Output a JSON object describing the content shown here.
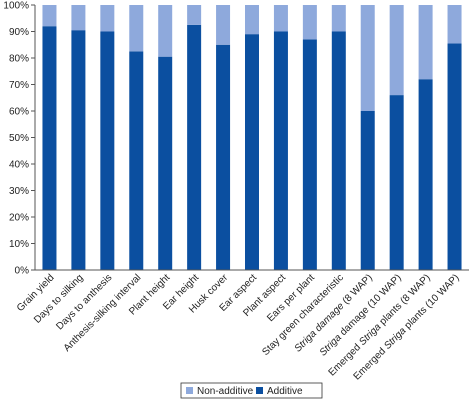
{
  "chart_data": {
    "type": "bar",
    "stacked": true,
    "categories": [
      "Grain yield",
      "Days to silking",
      "Days to anthesis",
      "Anthesis-silking interval",
      "Plant height",
      "Ear height",
      "Husk cover",
      "Ear aspect",
      "Plant aspect",
      "Ears per plant",
      "Stay green characteristic",
      "Striga damage (8 WAP)",
      "Striga damage (10 WAP)",
      "Emerged Striga plants (8 WAP)",
      "Emerged Striga plants (10 WAP)"
    ],
    "category_italic_words": [
      "",
      "",
      "",
      "",
      "",
      "",
      "",
      "",
      "",
      "",
      "",
      "Striga damage",
      "Striga",
      "Striga",
      "Striga"
    ],
    "series": [
      {
        "name": "Additive",
        "color": "#0b4fa0",
        "values": [
          92,
          90.5,
          90,
          82.5,
          80.5,
          92.5,
          85,
          89,
          90,
          87,
          90,
          60,
          66,
          72,
          85.5
        ]
      },
      {
        "name": "Non-additive",
        "color": "#8ea9dc",
        "values": [
          8,
          9.5,
          10,
          17.5,
          19.5,
          7.5,
          15,
          11,
          10,
          13,
          10,
          40,
          34,
          28,
          14.5
        ]
      }
    ],
    "yticks": [
      "0%",
      "10%",
      "20%",
      "30%",
      "40%",
      "50%",
      "60%",
      "70%",
      "80%",
      "90%",
      "100%"
    ],
    "ylim": [
      0,
      100
    ],
    "grid": false,
    "legend": {
      "placement": "bottom",
      "entries": [
        "Non-additive",
        "Additive"
      ]
    }
  }
}
